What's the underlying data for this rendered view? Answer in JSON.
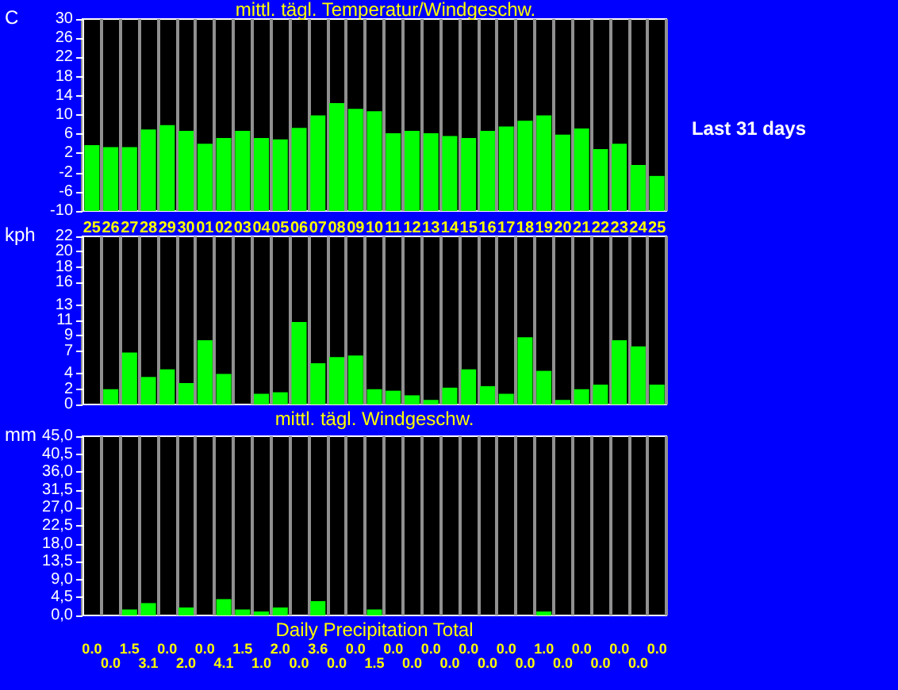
{
  "chart_data": [
    {
      "type": "bar",
      "title": "mittl. tägl. Temperatur/Windgeschw.",
      "ylabel": "C",
      "annotations": [
        "Last 31 days"
      ],
      "categories": [
        "25",
        "26",
        "27",
        "28",
        "29",
        "30",
        "01",
        "02",
        "03",
        "04",
        "05",
        "06",
        "07",
        "08",
        "09",
        "10",
        "11",
        "12",
        "13",
        "14",
        "15",
        "16",
        "17",
        "18",
        "19",
        "20",
        "21",
        "22",
        "23",
        "24",
        "25"
      ],
      "base": [
        -10,
        -10,
        -10,
        -10,
        -10,
        -10,
        -10,
        -10,
        -10,
        -10,
        -10,
        -10,
        -10,
        -10,
        -10,
        -10,
        -10,
        -10,
        -10,
        -10,
        -10,
        -10,
        -10,
        -10,
        -10,
        -10,
        -10,
        -10,
        -10,
        -10,
        -10
      ],
      "values": [
        13.7,
        13.3,
        13.3,
        17.0,
        17.9,
        16.7,
        14.0,
        15.2,
        16.7,
        15.2,
        14.9,
        17.3,
        19.9,
        22.5,
        21.3,
        20.8,
        16.2,
        16.7,
        16.2,
        15.6,
        15.2,
        16.7,
        17.6,
        18.8,
        19.9,
        15.9,
        17.2,
        12.9,
        14.0,
        9.6,
        7.3
      ],
      "color": "#00ff00",
      "ylim": [
        -10,
        30
      ],
      "yticks": [
        -10,
        -6,
        -2,
        2,
        6,
        10,
        14,
        18,
        22,
        26,
        30
      ],
      "grid": "x"
    },
    {
      "type": "bar",
      "ylabel": "kph",
      "xlabel": "mittl. tägl. Windgeschw.",
      "categories": [
        "25",
        "26",
        "27",
        "28",
        "29",
        "30",
        "01",
        "02",
        "03",
        "04",
        "05",
        "06",
        "07",
        "08",
        "09",
        "10",
        "11",
        "12",
        "13",
        "14",
        "15",
        "16",
        "17",
        "18",
        "19",
        "20",
        "21",
        "22",
        "23",
        "24",
        "25"
      ],
      "values": [
        0,
        2.0,
        6.8,
        3.6,
        4.6,
        2.8,
        8.4,
        4.0,
        0,
        1.4,
        1.6,
        10.8,
        5.4,
        6.2,
        6.4,
        2.0,
        1.8,
        1.2,
        0.6,
        2.2,
        4.6,
        2.4,
        1.4,
        8.8,
        4.4,
        0.6,
        2.0,
        2.6,
        8.4,
        7.6,
        2.6
      ],
      "color": "#00ff00",
      "ylim": [
        0,
        22
      ],
      "yticks": [
        0,
        2,
        4,
        7,
        9,
        11,
        13,
        16,
        18,
        20,
        22
      ],
      "grid": "x",
      "tick_labels": "y"
    },
    {
      "type": "bar",
      "ylabel": "mm",
      "xlabel": "Daily Precipitation Total",
      "categories": [
        "25",
        "26",
        "27",
        "28",
        "29",
        "30",
        "01",
        "02",
        "03",
        "04",
        "05",
        "06",
        "07",
        "08",
        "09",
        "10",
        "11",
        "12",
        "13",
        "14",
        "15",
        "16",
        "17",
        "18",
        "19",
        "20",
        "21",
        "22",
        "23",
        "24",
        "25"
      ],
      "values": [
        0.0,
        0.0,
        1.5,
        3.1,
        0.0,
        2.0,
        0.0,
        4.1,
        1.5,
        1.0,
        2.0,
        0.0,
        3.6,
        0.0,
        0.0,
        1.5,
        0.0,
        0.0,
        0.0,
        0.0,
        0.0,
        0.0,
        0.0,
        0.0,
        1.0,
        0.0,
        0.0,
        0.0,
        0.0,
        0.0,
        0.0
      ],
      "value_labels": [
        "0.0",
        "0.0",
        "1.5",
        "3.1",
        "0.0",
        "2.0",
        "0.0",
        "4.1",
        "1.5",
        "1.0",
        "2.0",
        "0.0",
        "3.6",
        "0.0",
        "0.0",
        "1.5",
        "0.0",
        "0.0",
        "0.0",
        "0.0",
        "0.0",
        "0.0",
        "0.0",
        "0.0",
        "1.0",
        "0.0",
        "0.0",
        "0.0",
        "0.0",
        "0.0",
        "0.0"
      ],
      "color": "#00ff00",
      "ylim": [
        0,
        45
      ],
      "yticks": [
        {
          "value": 0,
          "label": "0,0"
        },
        {
          "value": 4.5,
          "label": "4,5"
        },
        {
          "value": 9,
          "label": "9,0"
        },
        {
          "value": 13.5,
          "label": "13,5"
        },
        {
          "value": 18,
          "label": "18,0"
        },
        {
          "value": 22.5,
          "label": "22,5"
        },
        {
          "value": 27,
          "label": "27,0"
        },
        {
          "value": 31.5,
          "label": "31,5"
        },
        {
          "value": 36,
          "label": "36,0"
        },
        {
          "value": 40.5,
          "label": "40,5"
        },
        {
          "value": 45,
          "label": "45,0"
        }
      ],
      "grid": "x",
      "tick_labels": "y"
    }
  ]
}
